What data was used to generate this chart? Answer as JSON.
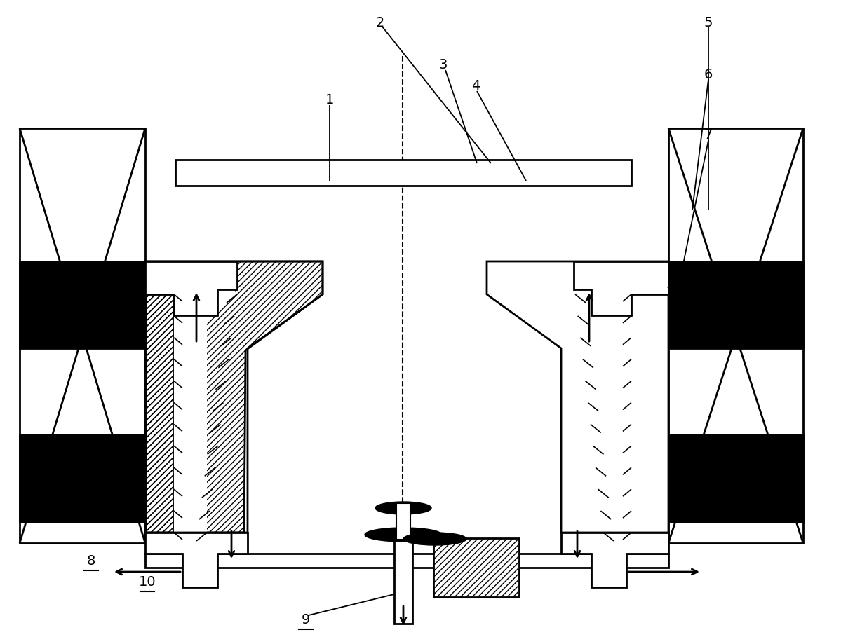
{
  "bg_color": "#ffffff",
  "line_color": "#000000",
  "fig_width": 11.99,
  "fig_height": 9.19,
  "lw_main": 2.0,
  "lw_thin": 1.5
}
